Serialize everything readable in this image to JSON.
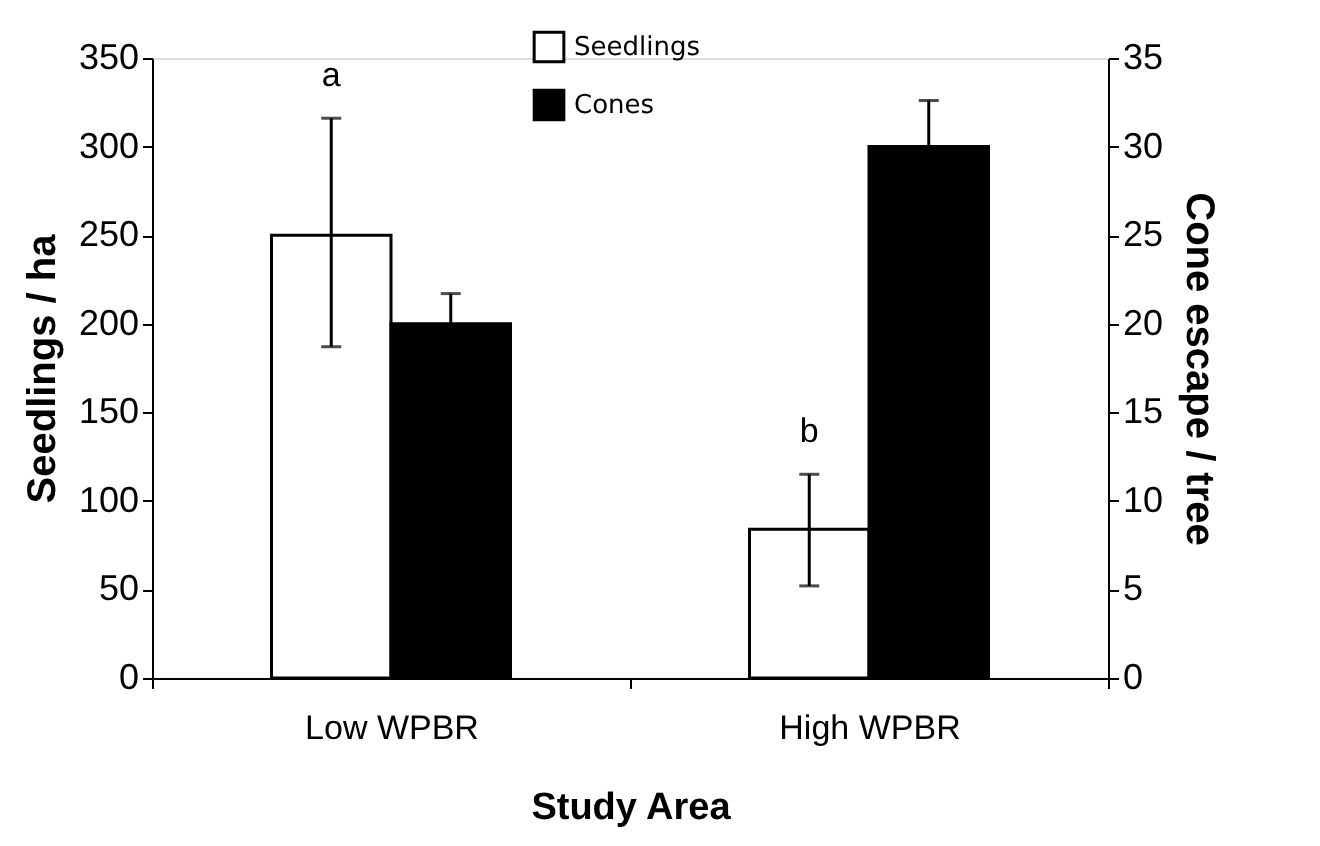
{
  "chart_data": {
    "type": "bar",
    "xlabel": "Study Area",
    "ylabel": "Seedlings  / ha",
    "y2label": "Cone escape / tree",
    "categories": [
      "Low WPBR",
      "High WPBR"
    ],
    "series": [
      {
        "name": "Seedlings",
        "color": "#ffffff",
        "values": [
          250,
          84
        ],
        "errors": [
          [
            187,
            316
          ],
          [
            52,
            115
          ]
        ]
      },
      {
        "name": "Cones",
        "color": "#000000",
        "values": [
          20,
          30
        ],
        "axis": "y2",
        "errors": [
          1.7,
          2.6
        ]
      }
    ],
    "ylim": [
      0,
      350
    ],
    "yticks": [
      0,
      50,
      100,
      150,
      200,
      250,
      300,
      350
    ],
    "y2lim": [
      0,
      35
    ],
    "y2ticks": [
      0,
      5,
      10,
      15,
      20,
      25,
      30,
      35
    ],
    "annotations": [
      "a",
      "b"
    ],
    "legend": "top",
    "grid": false
  }
}
